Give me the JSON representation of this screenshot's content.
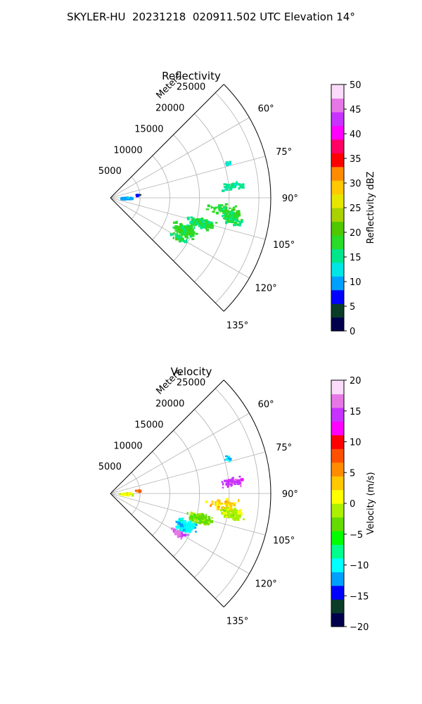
{
  "figure": {
    "title": "SKYLER-HU  20231218  020911.502 UTC Elevation 14°"
  },
  "colors": {
    "grid": "#b0b0b0",
    "axis": "#000000",
    "reflectivity_ramp": [
      "#00004c",
      "#0a3c28",
      "#0000ff",
      "#00a0ff",
      "#00e6e6",
      "#00e68c",
      "#28dc28",
      "#50c800",
      "#aad200",
      "#e6e600",
      "#ffc800",
      "#ff8c00",
      "#ff0000",
      "#ff0064",
      "#ff00ff",
      "#c832ff",
      "#e678e6",
      "#fadcfa"
    ],
    "velocity_ramp": [
      "#00004c",
      "#0a3c28",
      "#0000ff",
      "#00a0ff",
      "#00ffff",
      "#00ff8c",
      "#00ff00",
      "#64dc00",
      "#aaf000",
      "#ffff00",
      "#ffc800",
      "#ff8c00",
      "#ff5000",
      "#ff0000",
      "#ff00ff",
      "#c832ff",
      "#e678e6",
      "#fadcfa"
    ]
  },
  "chart_data": [
    {
      "type": "polar-sector",
      "title": "Reflectivity",
      "range_label": "Meters",
      "r_ticks": [
        5000,
        10000,
        15000,
        20000,
        25000
      ],
      "r_tick_labels": [
        "5000",
        "10000",
        "15000",
        "20000",
        "25000"
      ],
      "rlim": [
        0,
        27000
      ],
      "theta_range_deg": [
        45,
        135
      ],
      "theta_ticks": [
        60,
        75,
        90,
        105,
        120,
        135
      ],
      "theta_tick_labels": [
        "60°",
        "75°",
        "90°",
        "105°",
        "120°",
        "135°"
      ],
      "grid": true,
      "colorbar": {
        "label": "Reflectivity dBZ",
        "range": [
          0,
          50
        ],
        "ticks": [
          0,
          5,
          10,
          15,
          20,
          25,
          30,
          35,
          40,
          45,
          50
        ],
        "tick_labels": [
          "0",
          "5",
          "10",
          "15",
          "20",
          "25",
          "30",
          "35",
          "40",
          "45",
          "50"
        ]
      },
      "echo_regions": [
        {
          "az_deg": 113,
          "range_m": 13500,
          "spread_deg": 6,
          "spread_m": 2500,
          "value": 18,
          "density": 160
        },
        {
          "az_deg": 105,
          "range_m": 15500,
          "spread_deg": 4,
          "spread_m": 3000,
          "value": 17,
          "density": 120
        },
        {
          "az_deg": 99,
          "range_m": 20500,
          "spread_deg": 4,
          "spread_m": 2500,
          "value": 17,
          "density": 110
        },
        {
          "az_deg": 95,
          "range_m": 19000,
          "spread_deg": 4,
          "spread_m": 4000,
          "value": 18,
          "density": 60
        },
        {
          "az_deg": 84,
          "range_m": 20500,
          "spread_deg": 3,
          "spread_m": 2200,
          "value": 15,
          "density": 55
        },
        {
          "az_deg": 73,
          "range_m": 20500,
          "spread_deg": 2,
          "spread_m": 700,
          "value": 14,
          "density": 10
        },
        {
          "az_deg": 120,
          "range_m": 13000,
          "spread_deg": 3,
          "spread_m": 1800,
          "value": 17,
          "density": 45
        },
        {
          "az_deg": 88,
          "range_m": 2500,
          "spread_deg": 4,
          "spread_m": 1400,
          "value": 10,
          "density": 45
        },
        {
          "az_deg": 82,
          "range_m": 4500,
          "spread_deg": 2,
          "spread_m": 500,
          "value": 6,
          "density": 8
        }
      ]
    },
    {
      "type": "polar-sector",
      "title": "Velocity",
      "range_label": "Meters",
      "r_ticks": [
        5000,
        10000,
        15000,
        20000,
        25000
      ],
      "r_tick_labels": [
        "5000",
        "10000",
        "15000",
        "20000",
        "25000"
      ],
      "rlim": [
        0,
        27000
      ],
      "theta_range_deg": [
        45,
        135
      ],
      "theta_ticks": [
        60,
        75,
        90,
        105,
        120,
        135
      ],
      "theta_tick_labels": [
        "60°",
        "75°",
        "90°",
        "105°",
        "120°",
        "135°"
      ],
      "grid": true,
      "colorbar": {
        "label": "Velocity (m/s)",
        "range": [
          -20,
          20
        ],
        "ticks": [
          -20,
          -15,
          -10,
          -5,
          0,
          5,
          10,
          15,
          20
        ],
        "tick_labels": [
          "−20",
          "−15",
          "−10",
          "−5",
          "0",
          "5",
          "10",
          "15",
          "20"
        ]
      },
      "echo_regions": [
        {
          "az_deg": 113,
          "range_m": 13500,
          "spread_deg": 6,
          "spread_m": 2500,
          "value": -10,
          "density": 160
        },
        {
          "az_deg": 105,
          "range_m": 15500,
          "spread_deg": 4,
          "spread_m": 3000,
          "value": -3,
          "density": 120
        },
        {
          "az_deg": 99,
          "range_m": 20500,
          "spread_deg": 4,
          "spread_m": 2500,
          "value": -1,
          "density": 110
        },
        {
          "az_deg": 95,
          "range_m": 19000,
          "spread_deg": 4,
          "spread_m": 4000,
          "value": 3,
          "density": 60
        },
        {
          "az_deg": 84,
          "range_m": 20500,
          "spread_deg": 3,
          "spread_m": 2200,
          "value": 15,
          "density": 55
        },
        {
          "az_deg": 73,
          "range_m": 20500,
          "spread_deg": 2,
          "spread_m": 700,
          "value": -12,
          "density": 10
        },
        {
          "az_deg": 120,
          "range_m": 13000,
          "spread_deg": 3,
          "spread_m": 1800,
          "value": 16,
          "density": 45
        },
        {
          "az_deg": 88,
          "range_m": 2500,
          "spread_deg": 4,
          "spread_m": 1400,
          "value": 0,
          "density": 45
        },
        {
          "az_deg": 82,
          "range_m": 4500,
          "spread_deg": 2,
          "spread_m": 500,
          "value": 8,
          "density": 8
        }
      ]
    }
  ]
}
